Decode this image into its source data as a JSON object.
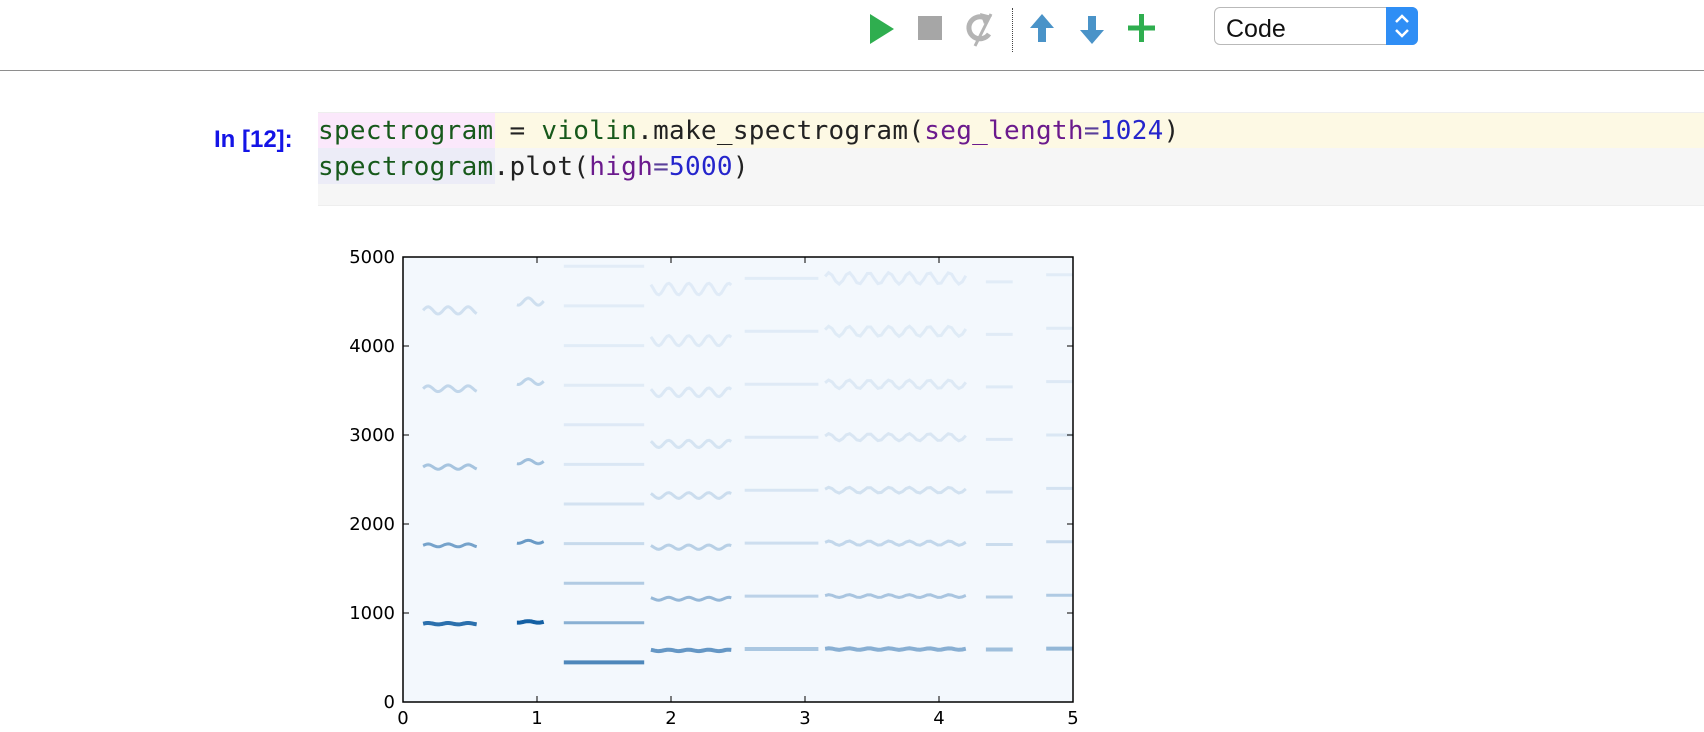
{
  "toolbar": {
    "buttons": [
      {
        "name": "run-icon",
        "color": "#2fae4f"
      },
      {
        "name": "stop-icon",
        "color": "#a6a6a6"
      },
      {
        "name": "restart-icon",
        "color": "#b4b4b4"
      },
      {
        "name": "move-up-icon",
        "color": "#4a93c8"
      },
      {
        "name": "move-down-icon",
        "color": "#4a93c8"
      },
      {
        "name": "add-cell-icon",
        "color": "#2fae4f"
      }
    ],
    "cell_type": "Code"
  },
  "cell": {
    "prompt": "In [12]:",
    "line1": {
      "t1": "spectrogram",
      "t2": " = ",
      "t3": "violin",
      "t4": ".make_spectrogram(",
      "t5": "seg_length",
      "t6": "=",
      "t7": "1024",
      "t8": ")"
    },
    "line2": {
      "t1": "spectrogram",
      "t2": ".plot(",
      "t3": "high",
      "t4": "=",
      "t5": "5000",
      "t6": ")"
    }
  },
  "chart_data": {
    "type": "heatmap",
    "title": "",
    "xlabel": "",
    "ylabel": "",
    "xlim": [
      0,
      5
    ],
    "ylim": [
      0,
      5000
    ],
    "xticks": [
      "0",
      "1",
      "2",
      "3",
      "4",
      "5"
    ],
    "yticks": [
      "0",
      "1000",
      "2000",
      "3000",
      "4000",
      "5000"
    ],
    "colormap": "Blues",
    "segments": [
      {
        "x0": 0.15,
        "x1": 0.55,
        "f0": 880,
        "wavy": true,
        "strength": 0.85
      },
      {
        "x0": 0.85,
        "x1": 1.05,
        "f0": 900,
        "wavy": true,
        "strength": 0.95
      },
      {
        "x0": 1.2,
        "x1": 1.8,
        "f0": 445,
        "wavy": false,
        "strength": 0.7
      },
      {
        "x0": 1.85,
        "x1": 2.45,
        "f0": 580,
        "wavy": true,
        "strength": 0.6
      },
      {
        "x0": 2.55,
        "x1": 3.1,
        "f0": 595,
        "wavy": false,
        "strength": 0.3
      },
      {
        "x0": 3.15,
        "x1": 4.2,
        "f0": 595,
        "wavy": true,
        "strength": 0.45
      },
      {
        "x0": 4.35,
        "x1": 4.55,
        "f0": 590,
        "wavy": false,
        "strength": 0.35
      },
      {
        "x0": 4.8,
        "x1": 5.0,
        "f0": 600,
        "wavy": false,
        "strength": 0.4
      }
    ]
  }
}
